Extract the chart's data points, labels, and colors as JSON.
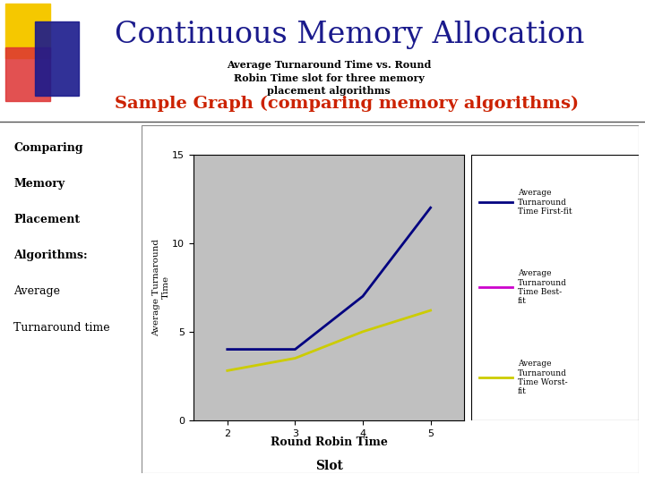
{
  "slide_title": "Continuous Memory Allocation",
  "slide_subtitle": "Sample Graph (comparing memory algorithms)",
  "slide_title_color": "#1a1a8c",
  "slide_subtitle_color": "#cc2200",
  "left_text_lines": [
    "Comparing",
    "Memory",
    "Placement",
    "Algorithms:",
    "Average",
    "Turnaround time"
  ],
  "left_text_bold": [
    "Comparing",
    "Memory",
    "Placement",
    "Algorithms:"
  ],
  "chart_title_line1": "Average Turnaround Time vs. Round",
  "chart_title_line2": "Robin Time slot for three memory",
  "chart_title_line3": "placement algorithms",
  "xlabel_line1": "Round Robin Time",
  "xlabel_line2": "Slot",
  "ylabel": "Average Turnaround\nTime",
  "x_ticks": [
    2,
    3,
    4,
    5
  ],
  "ylim": [
    0,
    15
  ],
  "xlim": [
    1.5,
    5.5
  ],
  "yticks": [
    0,
    5,
    10,
    15
  ],
  "first_fit_x": [
    2,
    3,
    4,
    5
  ],
  "first_fit_y": [
    4.0,
    4.0,
    7.0,
    12.0
  ],
  "worst_fit_x": [
    2,
    3,
    4,
    5
  ],
  "worst_fit_y": [
    2.8,
    3.5,
    5.0,
    6.2
  ],
  "first_fit_color": "#000080",
  "best_fit_color": "#cc00cc",
  "worst_fit_color": "#cccc00",
  "bg_color": "#ffffff",
  "plot_bg_color": "#c0c0c0",
  "yellow_sq_color": "#f5c800",
  "red_sq_color": "#dd3333",
  "blue_sq_color": "#1a1a8c",
  "font_family": "serif"
}
